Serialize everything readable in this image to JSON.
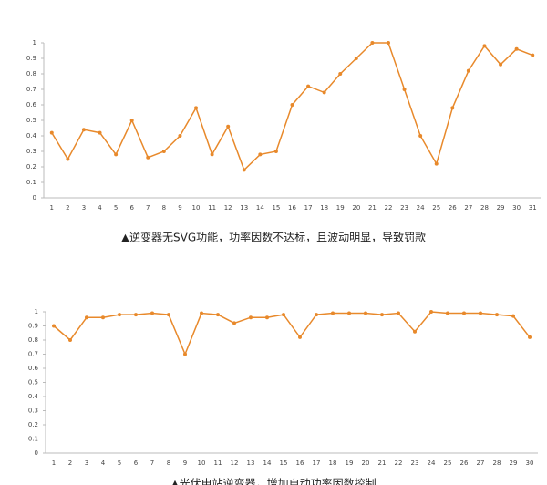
{
  "chart_data": [
    {
      "type": "line",
      "title": "▲逆变器无SVG功能，功率因数不达标，且波动明显，导致罚款",
      "categories": [
        "1",
        "2",
        "3",
        "4",
        "5",
        "6",
        "7",
        "8",
        "9",
        "10",
        "11",
        "12",
        "13",
        "14",
        "15",
        "16",
        "17",
        "18",
        "19",
        "20",
        "21",
        "22",
        "23",
        "24",
        "25",
        "26",
        "27",
        "28",
        "29",
        "30",
        "31"
      ],
      "values": [
        0.42,
        0.25,
        0.44,
        0.42,
        0.28,
        0.5,
        0.26,
        0.3,
        0.4,
        0.58,
        0.28,
        0.46,
        0.18,
        0.28,
        0.3,
        0.6,
        0.72,
        0.68,
        0.8,
        0.9,
        1,
        1,
        0.7,
        0.4,
        0.22,
        0.58,
        0.82,
        0.98,
        0.86,
        0.96,
        0.92
      ],
      "color": "#e8892b",
      "ylim": [
        0,
        1
      ],
      "yticks": [
        0,
        0.1,
        0.2,
        0.3,
        0.4,
        0.5,
        0.6,
        0.7,
        0.8,
        0.9,
        1
      ]
    },
    {
      "type": "line",
      "title": "▲光伏电站逆变器，增加自动功率因数控制",
      "categories": [
        "1",
        "2",
        "3",
        "4",
        "5",
        "6",
        "7",
        "8",
        "9",
        "10",
        "11",
        "12",
        "13",
        "14",
        "15",
        "16",
        "17",
        "18",
        "19",
        "20",
        "21",
        "22",
        "23",
        "24",
        "25",
        "26",
        "27",
        "28",
        "29",
        "30"
      ],
      "values": [
        0.9,
        0.8,
        0.96,
        0.96,
        0.98,
        0.98,
        0.99,
        0.98,
        0.7,
        0.99,
        0.98,
        0.92,
        0.96,
        0.96,
        0.98,
        0.82,
        0.98,
        0.99,
        0.99,
        0.99,
        0.98,
        0.99,
        0.86,
        1,
        0.99,
        0.99,
        0.99,
        0.98,
        0.97,
        0.82
      ],
      "color": "#e8892b",
      "ylim": [
        0,
        1
      ],
      "yticks": [
        0,
        0.1,
        0.2,
        0.3,
        0.4,
        0.5,
        0.6,
        0.7,
        0.8,
        0.9,
        1
      ]
    }
  ]
}
